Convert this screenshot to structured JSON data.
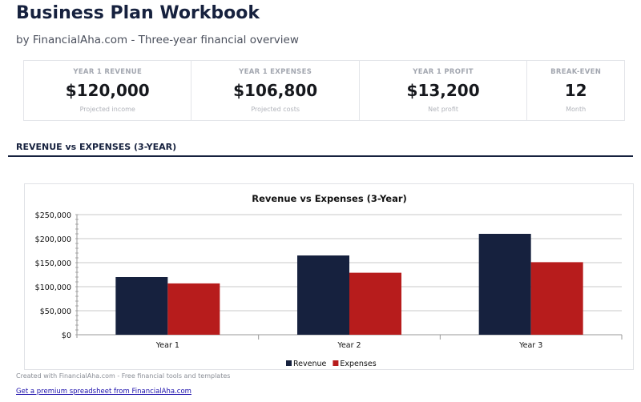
{
  "header": {
    "title": "Business Plan Workbook",
    "subtitle": "by FinancialAha.com - Three-year financial overview"
  },
  "kpis": [
    {
      "label": "YEAR 1 REVENUE",
      "value": "$120,000",
      "sub": "Projected income"
    },
    {
      "label": "YEAR 1 EXPENSES",
      "value": "$106,800",
      "sub": "Projected costs"
    },
    {
      "label": "YEAR 1 PROFIT",
      "value": "$13,200",
      "sub": "Net profit"
    },
    {
      "label": "BREAK-EVEN",
      "value": "12",
      "sub": "Month"
    }
  ],
  "section_title": "REVENUE vs EXPENSES (3-YEAR)",
  "chart_data": {
    "type": "bar",
    "title": "Revenue vs Expenses (3-Year)",
    "categories": [
      "Year 1",
      "Year 2",
      "Year 3"
    ],
    "series": [
      {
        "name": "Revenue",
        "color": "#16213e",
        "values": [
          120000,
          165000,
          210000
        ]
      },
      {
        "name": "Expenses",
        "color": "#b71c1c",
        "values": [
          106800,
          129000,
          151000
        ]
      }
    ],
    "ylim": [
      0,
      250000
    ],
    "yticks": [
      "$0",
      "$50,000",
      "$100,000",
      "$150,000",
      "$200,000",
      "$250,000"
    ],
    "grid": true,
    "legend": "bottom"
  },
  "footer": {
    "text": "Created with FinancialAha.com - Free financial tools and templates",
    "link": "Get a premium spreadsheet from FinancialAha.com"
  }
}
